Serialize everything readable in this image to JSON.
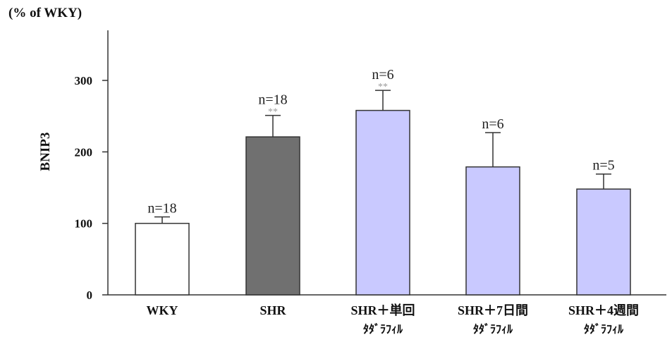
{
  "chart_data": {
    "type": "bar",
    "unit_label": "(% of WKY)",
    "ylabel": "BNIP3",
    "xlabel": "",
    "ylim": [
      0,
      360
    ],
    "yticks": [
      0,
      100,
      200,
      300
    ],
    "grid": false,
    "categories": [
      {
        "line1": "WKY",
        "line2": ""
      },
      {
        "line1": "SHR",
        "line2": ""
      },
      {
        "line1": "SHR＋単回",
        "line2": "ﾀﾀﾞﾗﾌｨﾙ"
      },
      {
        "line1": "SHR＋7日間",
        "line2": "ﾀﾀﾞﾗﾌｨﾙ"
      },
      {
        "line1": "SHR＋4週間",
        "line2": "ﾀﾀﾞﾗﾌｨﾙ"
      }
    ],
    "values": [
      100,
      221,
      258,
      179,
      148
    ],
    "errors": [
      9,
      30,
      28,
      48,
      21
    ],
    "n_labels": [
      "n=18",
      "n=18",
      "n=6",
      "n=6",
      "n=5"
    ],
    "significance": [
      "",
      "**",
      "**",
      "",
      ""
    ],
    "colors": [
      "#ffffff",
      "#707070",
      "#c9c9ff",
      "#c9c9ff",
      "#c9c9ff"
    ]
  }
}
